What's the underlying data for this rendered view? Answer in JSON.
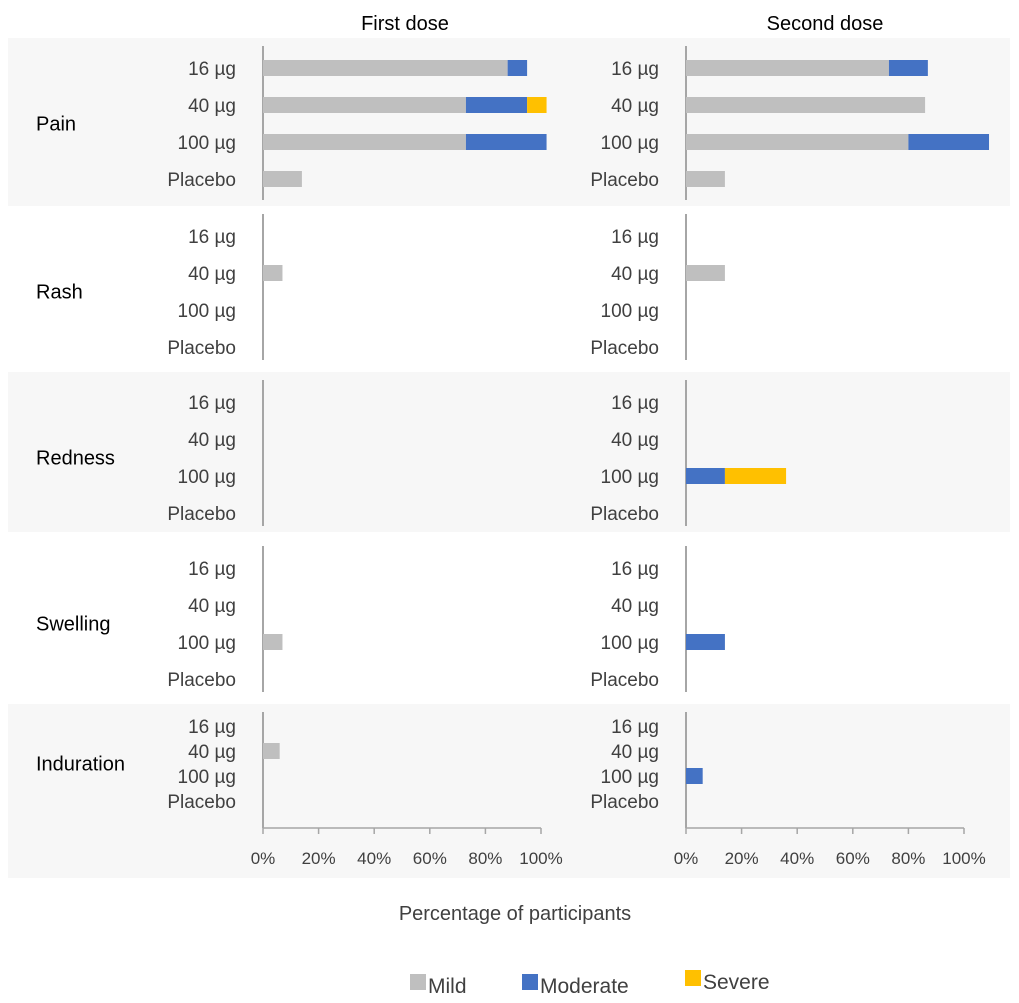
{
  "chart_data": {
    "type": "bar",
    "orientation": "horizontal",
    "stacked": true,
    "panels": [
      "First dose",
      "Second dose"
    ],
    "xlabel": "Percentage of participants",
    "xlim": [
      0,
      100
    ],
    "x_ticks": [
      "0%",
      "20%",
      "40%",
      "60%",
      "80%",
      "100%"
    ],
    "doses": [
      "16 µg",
      "40 µg",
      "100 µg",
      "Placebo"
    ],
    "series": [
      {
        "name": "Mild",
        "color": "#bfbfbf"
      },
      {
        "name": "Moderate",
        "color": "#4472c4"
      },
      {
        "name": "Severe",
        "color": "#ffc000"
      }
    ],
    "legend_position": "bottom",
    "groups": [
      {
        "name": "Pain",
        "first": [
          [
            88,
            7,
            0
          ],
          [
            73,
            22,
            7
          ],
          [
            73,
            29,
            0
          ],
          [
            14,
            0,
            0
          ]
        ],
        "second": [
          [
            73,
            14,
            0
          ],
          [
            86,
            0,
            0
          ],
          [
            80,
            29,
            0
          ],
          [
            14,
            0,
            0
          ]
        ]
      },
      {
        "name": "Rash",
        "first": [
          [
            0,
            0,
            0
          ],
          [
            7,
            0,
            0
          ],
          [
            0,
            0,
            0
          ],
          [
            0,
            0,
            0
          ]
        ],
        "second": [
          [
            0,
            0,
            0
          ],
          [
            14,
            0,
            0
          ],
          [
            0,
            0,
            0
          ],
          [
            0,
            0,
            0
          ]
        ]
      },
      {
        "name": "Redness",
        "first": [
          [
            0,
            0,
            0
          ],
          [
            0,
            0,
            0
          ],
          [
            0,
            0,
            0
          ],
          [
            0,
            0,
            0
          ]
        ],
        "second": [
          [
            0,
            0,
            0
          ],
          [
            0,
            0,
            0
          ],
          [
            0,
            14,
            22
          ],
          [
            0,
            0,
            0
          ]
        ]
      },
      {
        "name": "Swelling",
        "first": [
          [
            0,
            0,
            0
          ],
          [
            0,
            0,
            0
          ],
          [
            7,
            0,
            0
          ],
          [
            0,
            0,
            0
          ]
        ],
        "second": [
          [
            0,
            0,
            0
          ],
          [
            0,
            0,
            0
          ],
          [
            0,
            14,
            0
          ],
          [
            0,
            0,
            0
          ]
        ]
      },
      {
        "name": "Induration",
        "first": [
          [
            0,
            0,
            0
          ],
          [
            6,
            0,
            0
          ],
          [
            0,
            0,
            0
          ],
          [
            0,
            0,
            0
          ]
        ],
        "second": [
          [
            0,
            0,
            0
          ],
          [
            0,
            0,
            0
          ],
          [
            0,
            6,
            0
          ],
          [
            0,
            0,
            0
          ]
        ]
      }
    ]
  }
}
